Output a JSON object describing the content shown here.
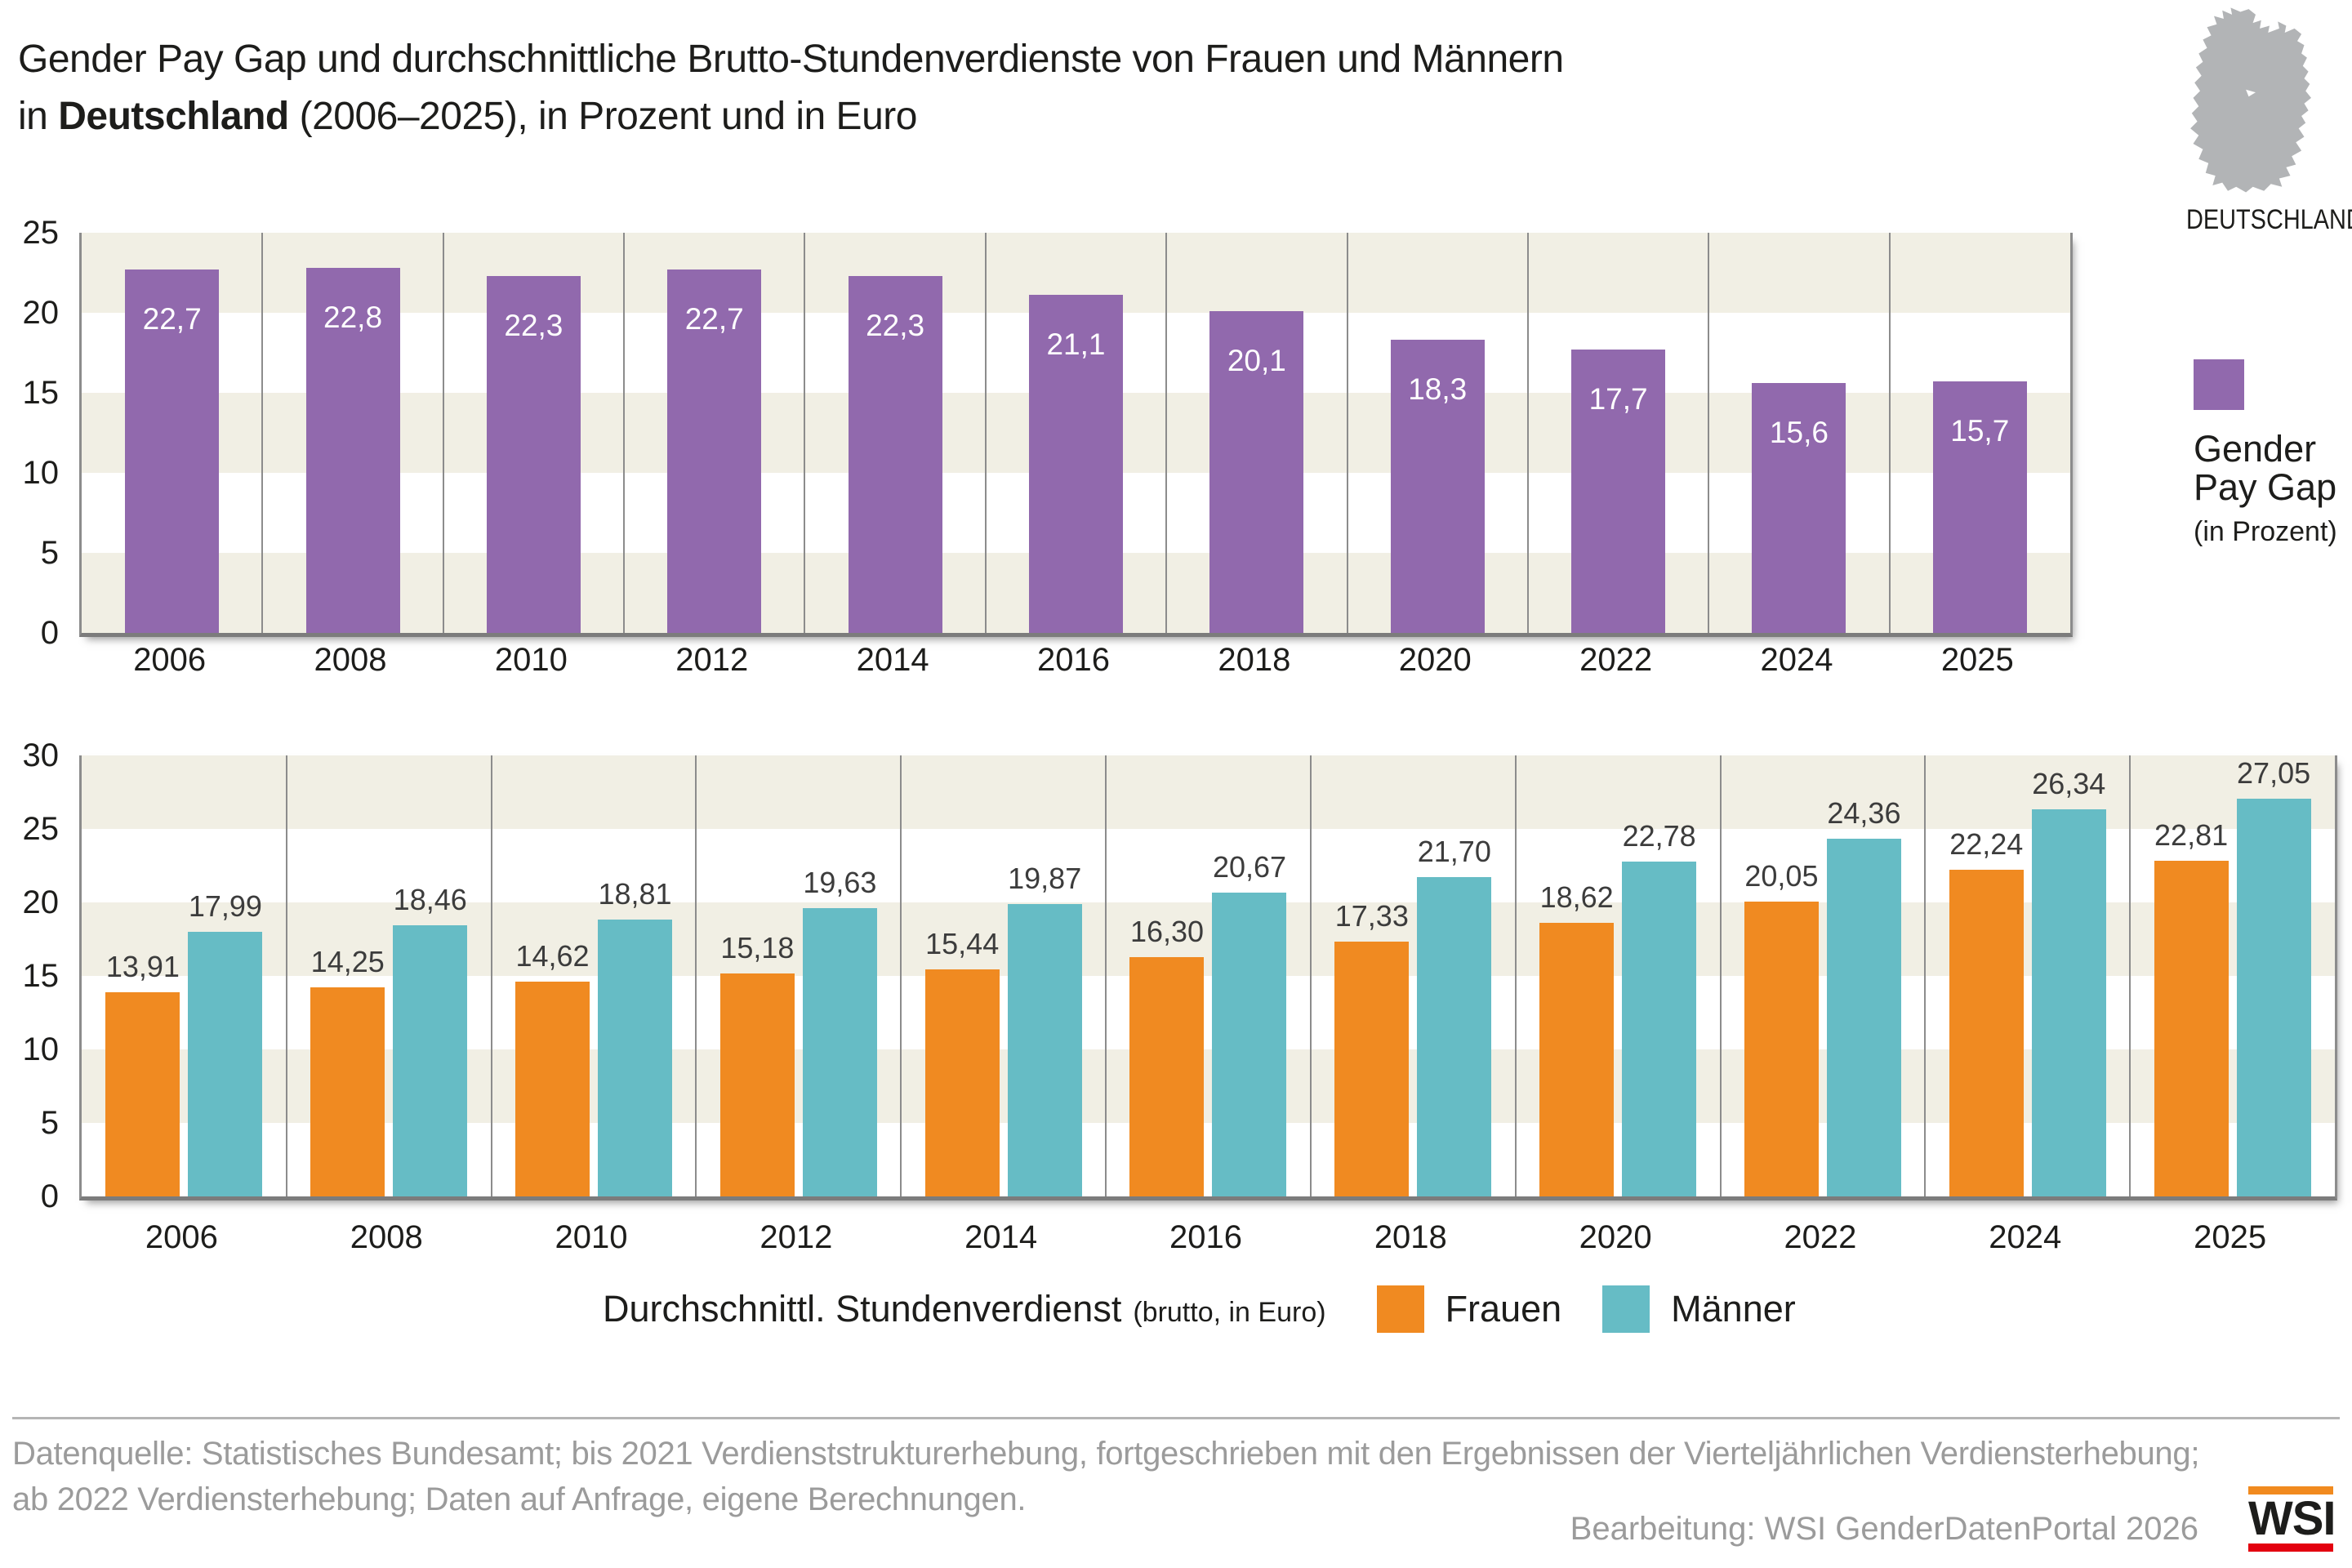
{
  "title": {
    "line1": "Gender Pay Gap und durchschnittliche Brutto-Stundenverdienste von Frauen und Männern",
    "line2_prefix": "in ",
    "line2_bold": "Deutschland",
    "line2_suffix": " (2006–2025), in Prozent und in Euro"
  },
  "region": {
    "map_icon": "germany-map-silhouette",
    "label": "DEUTSCHLAND"
  },
  "colors": {
    "purple": "#9169ad",
    "orange": "#f08a21",
    "teal": "#66bcc5",
    "band_beige": "#f1efe4",
    "band_white": "#ffffff",
    "grid_gray": "#8c8c8c",
    "value_label_dark": "#3c3c3c",
    "footer_gray": "#9b9b9b",
    "map_gray": "#b2b4b6",
    "wsi_orange": "#f18a1f",
    "wsi_red": "#e3000f"
  },
  "chart_data": [
    {
      "id": "gender-pay-gap",
      "type": "bar",
      "categories": [
        "2006",
        "2008",
        "2010",
        "2012",
        "2014",
        "2016",
        "2018",
        "2020",
        "2022",
        "2024",
        "2025"
      ],
      "values": [
        22.7,
        22.8,
        22.3,
        22.7,
        22.3,
        21.1,
        20.1,
        18.3,
        17.7,
        15.6,
        15.7
      ],
      "value_labels": [
        "22,7",
        "22,8",
        "22,3",
        "22,7",
        "22,3",
        "21,1",
        "20,1",
        "18,3",
        "17,7",
        "15,6",
        "15,7"
      ],
      "bar_color": "#9169ad",
      "ylim": [
        0,
        25
      ],
      "yticks": [
        0,
        5,
        10,
        15,
        20,
        25
      ],
      "grid": "horizontal-bands",
      "legend": {
        "label": "Gender Pay Gap",
        "sublabel": "(in Prozent)",
        "position": "right"
      }
    },
    {
      "id": "stundenverdienst",
      "type": "bar",
      "categories": [
        "2006",
        "2008",
        "2010",
        "2012",
        "2014",
        "2016",
        "2018",
        "2020",
        "2022",
        "2024",
        "2025"
      ],
      "series": [
        {
          "name": "Frauen",
          "color": "#f08a21",
          "values": [
            13.91,
            14.25,
            14.62,
            15.18,
            15.44,
            16.3,
            17.33,
            18.62,
            20.05,
            22.24,
            22.81
          ],
          "value_labels": [
            "13,91",
            "14,25",
            "14,62",
            "15,18",
            "15,44",
            "16,30",
            "17,33",
            "18,62",
            "20,05",
            "22,24",
            "22,81"
          ]
        },
        {
          "name": "Männer",
          "color": "#66bcc5",
          "values": [
            17.99,
            18.46,
            18.81,
            19.63,
            19.87,
            20.67,
            21.7,
            22.78,
            24.36,
            26.34,
            27.05
          ],
          "value_labels": [
            "17,99",
            "18,46",
            "18,81",
            "19,63",
            "19,87",
            "20,67",
            "21,70",
            "22,78",
            "24,36",
            "26,34",
            "27,05"
          ]
        }
      ],
      "ylim": [
        0,
        30
      ],
      "yticks": [
        0,
        5,
        10,
        15,
        20,
        25,
        30
      ],
      "grid": "horizontal-bands",
      "legend": {
        "label": "Durchschnittl. Stundenverdienst",
        "sublabel": "(brutto, in Euro)",
        "position": "bottom"
      }
    }
  ],
  "footer": {
    "source_line1": "Datenquelle: Statistisches Bundesamt; bis 2021 Verdienststrukturerhebung, fortgeschrieben mit den Ergebnissen der Vierteljährlichen Verdiensterhebung;",
    "source_line2": "ab 2022 Verdiensterhebung; Daten auf Anfrage, eigene Berechnungen.",
    "credit": "Bearbeitung: WSI GenderDatenPortal 2026",
    "logo_text": "WSI"
  }
}
